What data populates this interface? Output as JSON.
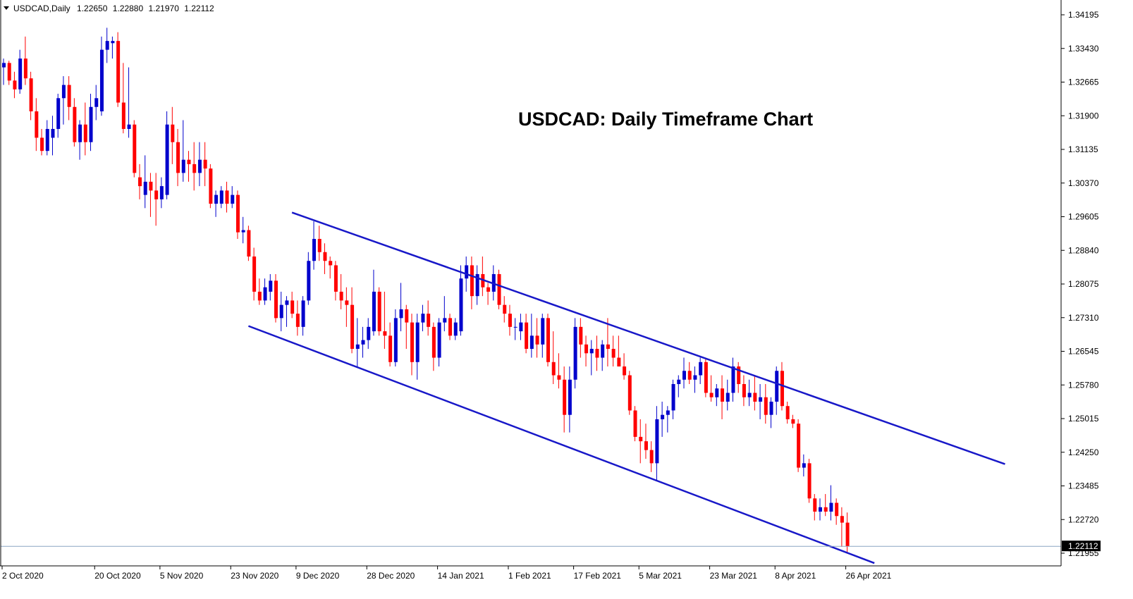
{
  "header": {
    "symbol": "USDCAD,Daily",
    "open": "1.22650",
    "high": "1.22880",
    "low": "1.21970",
    "close": "1.22112"
  },
  "colors": {
    "bull": "#0000cc",
    "bear": "#ff0000",
    "channel": "#1818c8",
    "axis": "#000000",
    "price_line": "#8ca6c4",
    "price_label_bg": "#000000"
  },
  "chart_data": {
    "type": "candlestick",
    "title": "USDCAD: Daily Timeframe Chart",
    "ylim": [
      1.2157,
      1.3457
    ],
    "y_ticks": [
      "1.34195",
      "1.33430",
      "1.32665",
      "1.31900",
      "1.31135",
      "1.30370",
      "1.29605",
      "1.28840",
      "1.28075",
      "1.27310",
      "1.26545",
      "1.25780",
      "1.25015",
      "1.24250",
      "1.23485",
      "1.22720",
      "1.21955"
    ],
    "x_ticks": [
      {
        "label": "2 Oct 2020",
        "index": 0
      },
      {
        "label": "20 Oct 2020",
        "index": 17
      },
      {
        "label": "5 Nov 2020",
        "index": 29
      },
      {
        "label": "23 Nov 2020",
        "index": 42
      },
      {
        "label": "9 Dec 2020",
        "index": 54
      },
      {
        "label": "28 Dec 2020",
        "index": 67
      },
      {
        "label": "14 Jan 2021",
        "index": 80
      },
      {
        "label": "1 Feb 2021",
        "index": 93
      },
      {
        "label": "17 Feb 2021",
        "index": 105
      },
      {
        "label": "5 Mar 2021",
        "index": 117
      },
      {
        "label": "23 Mar 2021",
        "index": 130
      },
      {
        "label": "8 Apr 2021",
        "index": 142
      },
      {
        "label": "26 Apr 2021",
        "index": 155
      }
    ],
    "current_price": "1.22112",
    "series": [
      {
        "ohlc": [
          [
            1.33,
            1.332,
            1.326,
            1.331
          ],
          [
            1.331,
            1.3315,
            1.326,
            1.327
          ],
          [
            1.327,
            1.329,
            1.323,
            1.325
          ],
          [
            1.325,
            1.334,
            1.324,
            1.332
          ],
          [
            1.332,
            1.337,
            1.326,
            1.3275
          ],
          [
            1.3275,
            1.329,
            1.318,
            1.32
          ],
          [
            1.32,
            1.323,
            1.311,
            1.314
          ],
          [
            1.314,
            1.316,
            1.31,
            1.311
          ],
          [
            1.311,
            1.318,
            1.31,
            1.316
          ],
          [
            1.314,
            1.319,
            1.31,
            1.316
          ],
          [
            1.316,
            1.324,
            1.314,
            1.323
          ],
          [
            1.323,
            1.328,
            1.317,
            1.326
          ],
          [
            1.326,
            1.328,
            1.318,
            1.321
          ],
          [
            1.321,
            1.323,
            1.312,
            1.313
          ],
          [
            1.313,
            1.318,
            1.309,
            1.317
          ],
          [
            1.317,
            1.322,
            1.31,
            1.313
          ],
          [
            1.313,
            1.324,
            1.311,
            1.321
          ],
          [
            1.321,
            1.326,
            1.318,
            1.323
          ],
          [
            1.32,
            1.337,
            1.319,
            1.334
          ],
          [
            1.334,
            1.339,
            1.331,
            1.336
          ],
          [
            1.3355,
            1.337,
            1.332,
            1.336
          ],
          [
            1.336,
            1.338,
            1.321,
            1.322
          ],
          [
            1.322,
            1.331,
            1.315,
            1.316
          ],
          [
            1.316,
            1.33,
            1.314,
            1.317
          ],
          [
            1.317,
            1.318,
            1.305,
            1.306
          ],
          [
            1.305,
            1.308,
            1.3,
            1.303
          ],
          [
            1.301,
            1.31,
            1.298,
            1.304
          ],
          [
            1.304,
            1.306,
            1.296,
            1.302
          ],
          [
            1.302,
            1.306,
            1.294,
            1.3
          ],
          [
            1.3,
            1.305,
            1.298,
            1.303
          ],
          [
            1.301,
            1.32,
            1.3,
            1.317
          ],
          [
            1.317,
            1.321,
            1.308,
            1.313
          ],
          [
            1.313,
            1.316,
            1.303,
            1.306
          ],
          [
            1.306,
            1.318,
            1.304,
            1.309
          ],
          [
            1.309,
            1.311,
            1.304,
            1.308
          ],
          [
            1.308,
            1.313,
            1.302,
            1.306
          ],
          [
            1.306,
            1.313,
            1.303,
            1.309
          ],
          [
            1.309,
            1.313,
            1.303,
            1.307
          ],
          [
            1.307,
            1.308,
            1.298,
            1.299
          ],
          [
            1.299,
            1.302,
            1.296,
            1.301
          ],
          [
            1.299,
            1.303,
            1.298,
            1.302
          ],
          [
            1.302,
            1.304,
            1.297,
            1.299
          ],
          [
            1.299,
            1.303,
            1.298,
            1.301
          ],
          [
            1.301,
            1.302,
            1.291,
            1.2925
          ],
          [
            1.2925,
            1.296,
            1.29,
            1.293
          ],
          [
            1.293,
            1.294,
            1.286,
            1.287
          ],
          [
            1.287,
            1.289,
            1.277,
            1.279
          ],
          [
            1.279,
            1.282,
            1.276,
            1.277
          ],
          [
            1.277,
            1.282,
            1.276,
            1.28
          ],
          [
            1.279,
            1.283,
            1.277,
            1.2815
          ],
          [
            1.2815,
            1.283,
            1.272,
            1.273
          ],
          [
            1.273,
            1.279,
            1.27,
            1.276
          ],
          [
            1.276,
            1.278,
            1.271,
            1.277
          ],
          [
            1.277,
            1.279,
            1.273,
            1.274
          ],
          [
            1.274,
            1.277,
            1.269,
            1.271
          ],
          [
            1.271,
            1.278,
            1.269,
            1.277
          ],
          [
            1.277,
            1.288,
            1.276,
            1.286
          ],
          [
            1.286,
            1.295,
            1.284,
            1.291
          ],
          [
            1.291,
            1.294,
            1.286,
            1.288
          ],
          [
            1.288,
            1.29,
            1.283,
            1.286
          ],
          [
            1.286,
            1.287,
            1.282,
            1.285
          ],
          [
            1.285,
            1.286,
            1.277,
            1.279
          ],
          [
            1.279,
            1.283,
            1.275,
            1.277
          ],
          [
            1.277,
            1.28,
            1.271,
            1.276
          ],
          [
            1.276,
            1.28,
            1.265,
            1.266
          ],
          [
            1.266,
            1.273,
            1.262,
            1.267
          ],
          [
            1.267,
            1.271,
            1.264,
            1.268
          ],
          [
            1.268,
            1.273,
            1.266,
            1.271
          ],
          [
            1.27,
            1.284,
            1.269,
            1.279
          ],
          [
            1.279,
            1.28,
            1.269,
            1.27
          ],
          [
            1.27,
            1.279,
            1.266,
            1.269
          ],
          [
            1.269,
            1.272,
            1.262,
            1.263
          ],
          [
            1.263,
            1.275,
            1.262,
            1.273
          ],
          [
            1.273,
            1.281,
            1.27,
            1.275
          ],
          [
            1.275,
            1.276,
            1.266,
            1.272
          ],
          [
            1.272,
            1.274,
            1.26,
            1.263
          ],
          [
            1.263,
            1.274,
            1.259,
            1.272
          ],
          [
            1.272,
            1.276,
            1.27,
            1.274
          ],
          [
            1.274,
            1.277,
            1.269,
            1.271
          ],
          [
            1.271,
            1.272,
            1.261,
            1.264
          ],
          [
            1.264,
            1.273,
            1.262,
            1.272
          ],
          [
            1.272,
            1.278,
            1.27,
            1.273
          ],
          [
            1.273,
            1.274,
            1.268,
            1.269
          ],
          [
            1.269,
            1.273,
            1.268,
            1.272
          ],
          [
            1.27,
            1.285,
            1.269,
            1.282
          ],
          [
            1.282,
            1.287,
            1.279,
            1.285
          ],
          [
            1.285,
            1.287,
            1.275,
            1.278
          ],
          [
            1.278,
            1.285,
            1.276,
            1.283
          ],
          [
            1.283,
            1.287,
            1.278,
            1.28
          ],
          [
            1.28,
            1.281,
            1.276,
            1.279
          ],
          [
            1.279,
            1.285,
            1.277,
            1.283
          ],
          [
            1.283,
            1.284,
            1.275,
            1.276
          ],
          [
            1.276,
            1.278,
            1.272,
            1.274
          ],
          [
            1.274,
            1.276,
            1.269,
            1.271
          ],
          [
            1.271,
            1.273,
            1.268,
            1.271
          ],
          [
            1.27,
            1.274,
            1.268,
            1.272
          ],
          [
            1.272,
            1.274,
            1.265,
            1.266
          ],
          [
            1.266,
            1.274,
            1.264,
            1.269
          ],
          [
            1.269,
            1.273,
            1.264,
            1.267
          ],
          [
            1.267,
            1.274,
            1.264,
            1.273
          ],
          [
            1.273,
            1.274,
            1.262,
            1.263
          ],
          [
            1.263,
            1.27,
            1.258,
            1.26
          ],
          [
            1.26,
            1.265,
            1.257,
            1.259
          ],
          [
            1.259,
            1.262,
            1.247,
            1.251
          ],
          [
            1.251,
            1.262,
            1.247,
            1.259
          ],
          [
            1.259,
            1.273,
            1.257,
            1.271
          ],
          [
            1.271,
            1.273,
            1.264,
            1.267
          ],
          [
            1.267,
            1.269,
            1.262,
            1.265
          ],
          [
            1.265,
            1.268,
            1.26,
            1.266
          ],
          [
            1.266,
            1.269,
            1.261,
            1.264
          ],
          [
            1.264,
            1.268,
            1.261,
            1.267
          ],
          [
            1.267,
            1.273,
            1.262,
            1.266
          ],
          [
            1.266,
            1.269,
            1.262,
            1.264
          ],
          [
            1.264,
            1.269,
            1.262,
            1.262
          ],
          [
            1.262,
            1.265,
            1.259,
            1.26
          ],
          [
            1.26,
            1.261,
            1.251,
            1.252
          ],
          [
            1.252,
            1.253,
            1.245,
            1.246
          ],
          [
            1.246,
            1.25,
            1.24,
            1.245
          ],
          [
            1.245,
            1.249,
            1.241,
            1.243
          ],
          [
            1.243,
            1.245,
            1.238,
            1.24
          ],
          [
            1.24,
            1.253,
            1.236,
            1.25
          ],
          [
            1.25,
            1.254,
            1.246,
            1.251
          ],
          [
            1.251,
            1.253,
            1.247,
            1.252
          ],
          [
            1.252,
            1.259,
            1.25,
            1.258
          ],
          [
            1.258,
            1.26,
            1.255,
            1.259
          ],
          [
            1.259,
            1.264,
            1.257,
            1.261
          ],
          [
            1.261,
            1.263,
            1.258,
            1.259
          ],
          [
            1.259,
            1.262,
            1.256,
            1.26
          ],
          [
            1.26,
            1.264,
            1.258,
            1.263
          ],
          [
            1.263,
            1.264,
            1.255,
            1.256
          ],
          [
            1.256,
            1.26,
            1.254,
            1.255
          ],
          [
            1.255,
            1.258,
            1.253,
            1.257
          ],
          [
            1.257,
            1.26,
            1.25,
            1.254
          ],
          [
            1.254,
            1.259,
            1.252,
            1.256
          ],
          [
            1.256,
            1.264,
            1.254,
            1.262
          ],
          [
            1.262,
            1.263,
            1.256,
            1.258
          ],
          [
            1.258,
            1.26,
            1.253,
            1.255
          ],
          [
            1.255,
            1.259,
            1.253,
            1.256
          ],
          [
            1.256,
            1.26,
            1.252,
            1.254
          ],
          [
            1.254,
            1.258,
            1.25,
            1.255
          ],
          [
            1.255,
            1.258,
            1.249,
            1.251
          ],
          [
            1.251,
            1.255,
            1.248,
            1.254
          ],
          [
            1.254,
            1.262,
            1.251,
            1.261
          ],
          [
            1.261,
            1.263,
            1.252,
            1.253
          ],
          [
            1.253,
            1.254,
            1.249,
            1.25
          ],
          [
            1.25,
            1.251,
            1.248,
            1.249
          ],
          [
            1.249,
            1.25,
            1.238,
            1.239
          ],
          [
            1.239,
            1.242,
            1.237,
            1.24
          ],
          [
            1.24,
            1.241,
            1.231,
            1.232
          ],
          [
            1.232,
            1.233,
            1.227,
            1.229
          ],
          [
            1.229,
            1.232,
            1.227,
            1.23
          ],
          [
            1.23,
            1.233,
            1.228,
            1.229
          ],
          [
            1.229,
            1.235,
            1.227,
            1.231
          ],
          [
            1.231,
            1.232,
            1.226,
            1.228
          ],
          [
            1.228,
            1.23,
            1.221,
            1.2265
          ],
          [
            1.2265,
            1.2288,
            1.2197,
            1.2211
          ]
        ]
      }
    ],
    "channel_lines": [
      {
        "name": "upper",
        "x": [
          53,
          184
        ],
        "y": [
          1.297,
          1.2398
        ]
      },
      {
        "name": "lower",
        "x": [
          45,
          160
        ],
        "y": [
          1.2712,
          1.2173
        ]
      }
    ]
  }
}
